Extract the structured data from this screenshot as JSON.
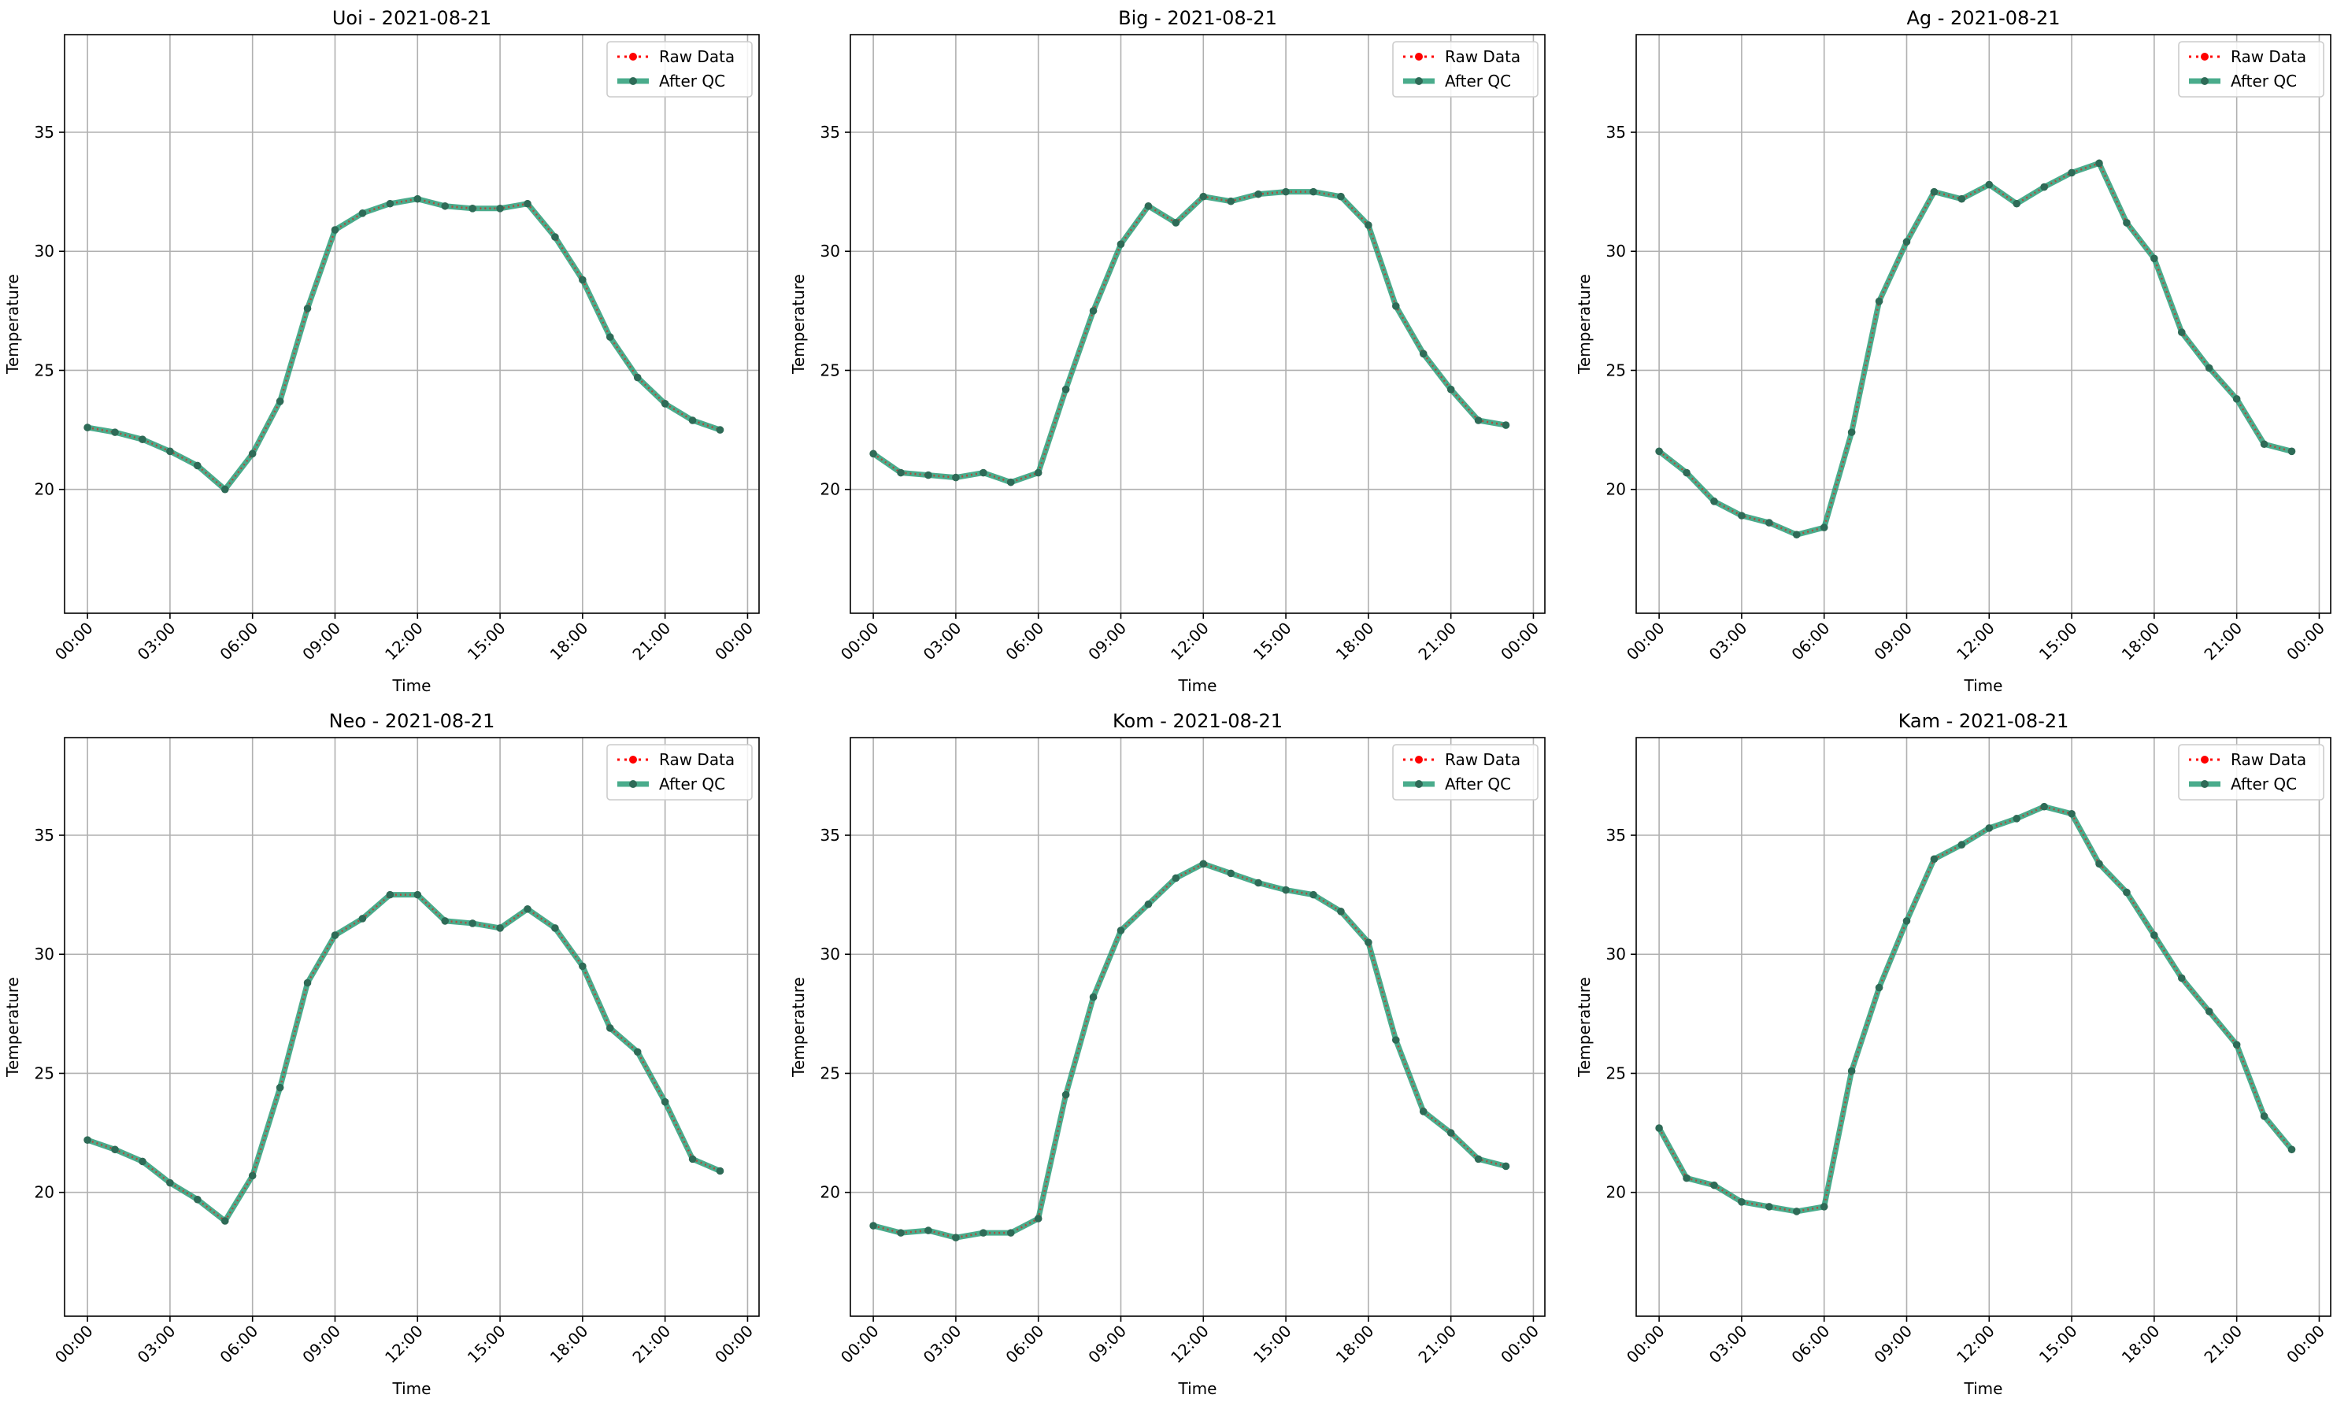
{
  "colors": {
    "raw": "#ff0000",
    "qc": "#2a9d78",
    "qc_marker": "#2e6b57",
    "grid": "#b0b0b0",
    "axes": "#000000"
  },
  "chart_data": [
    {
      "type": "line",
      "title": "Uoi - 2021-08-21",
      "xlabel": "Time",
      "ylabel": "Temperature",
      "x_ticks": [
        "00:00",
        "03:00",
        "06:00",
        "09:00",
        "12:00",
        "15:00",
        "18:00",
        "21:00",
        "00:00"
      ],
      "y_ticks": [
        "20",
        "25",
        "30",
        "35"
      ],
      "ylim": [
        14.8,
        39.1
      ],
      "x": [
        "00:00",
        "01:00",
        "02:00",
        "03:00",
        "04:00",
        "05:00",
        "06:00",
        "07:00",
        "08:00",
        "09:00",
        "10:00",
        "11:00",
        "12:00",
        "13:00",
        "14:00",
        "15:00",
        "16:00",
        "17:00",
        "18:00",
        "19:00",
        "20:00",
        "21:00",
        "22:00",
        "23:00"
      ],
      "grid": true,
      "legend": "upper right",
      "series": [
        {
          "name": "Raw Data",
          "style": "dotted-marker",
          "values": [
            22.6,
            22.4,
            22.1,
            21.6,
            21.0,
            20.0,
            21.5,
            23.7,
            27.6,
            30.9,
            31.6,
            32.0,
            32.2,
            31.9,
            31.8,
            31.8,
            32.0,
            30.6,
            28.8,
            26.4,
            24.7,
            23.6,
            22.9,
            22.5
          ]
        },
        {
          "name": "After QC",
          "style": "solid-marker",
          "values": [
            22.6,
            22.4,
            22.1,
            21.6,
            21.0,
            20.0,
            21.5,
            23.7,
            27.6,
            30.9,
            31.6,
            32.0,
            32.2,
            31.9,
            31.8,
            31.8,
            32.0,
            30.6,
            28.8,
            26.4,
            24.7,
            23.6,
            22.9,
            22.5
          ]
        }
      ]
    },
    {
      "type": "line",
      "title": "Big - 2021-08-21",
      "xlabel": "Time",
      "ylabel": "Temperature",
      "x_ticks": [
        "00:00",
        "03:00",
        "06:00",
        "09:00",
        "12:00",
        "15:00",
        "18:00",
        "21:00",
        "00:00"
      ],
      "y_ticks": [
        "20",
        "25",
        "30",
        "35"
      ],
      "ylim": [
        14.8,
        39.1
      ],
      "x": [
        "00:00",
        "01:00",
        "02:00",
        "03:00",
        "04:00",
        "05:00",
        "06:00",
        "07:00",
        "08:00",
        "09:00",
        "10:00",
        "11:00",
        "12:00",
        "13:00",
        "14:00",
        "15:00",
        "16:00",
        "17:00",
        "18:00",
        "19:00",
        "20:00",
        "21:00",
        "22:00",
        "23:00"
      ],
      "grid": true,
      "legend": "upper right",
      "series": [
        {
          "name": "Raw Data",
          "style": "dotted-marker",
          "values": [
            21.5,
            20.7,
            20.6,
            20.5,
            20.7,
            20.3,
            20.7,
            24.2,
            27.5,
            30.3,
            31.9,
            31.2,
            32.3,
            32.1,
            32.4,
            32.5,
            32.5,
            32.3,
            31.1,
            27.7,
            25.7,
            24.2,
            22.9,
            22.7
          ]
        },
        {
          "name": "After QC",
          "style": "solid-marker",
          "values": [
            21.5,
            20.7,
            20.6,
            20.5,
            20.7,
            20.3,
            20.7,
            24.2,
            27.5,
            30.3,
            31.9,
            31.2,
            32.3,
            32.1,
            32.4,
            32.5,
            32.5,
            32.3,
            31.1,
            27.7,
            25.7,
            24.2,
            22.9,
            22.7
          ]
        }
      ]
    },
    {
      "type": "line",
      "title": "Ag - 2021-08-21",
      "xlabel": "Time",
      "ylabel": "Temperature",
      "x_ticks": [
        "00:00",
        "03:00",
        "06:00",
        "09:00",
        "12:00",
        "15:00",
        "18:00",
        "21:00",
        "00:00"
      ],
      "y_ticks": [
        "20",
        "25",
        "30",
        "35"
      ],
      "ylim": [
        14.8,
        39.1
      ],
      "x": [
        "00:00",
        "01:00",
        "02:00",
        "03:00",
        "04:00",
        "05:00",
        "06:00",
        "07:00",
        "08:00",
        "09:00",
        "10:00",
        "11:00",
        "12:00",
        "13:00",
        "14:00",
        "15:00",
        "16:00",
        "17:00",
        "18:00",
        "19:00",
        "20:00",
        "21:00",
        "22:00",
        "23:00"
      ],
      "grid": true,
      "legend": "upper right",
      "series": [
        {
          "name": "Raw Data",
          "style": "dotted-marker",
          "values": [
            21.6,
            20.7,
            19.5,
            18.9,
            18.6,
            18.1,
            18.4,
            22.4,
            27.9,
            30.4,
            32.5,
            32.2,
            32.8,
            32.0,
            32.7,
            33.3,
            33.7,
            31.2,
            29.7,
            26.6,
            25.1,
            23.8,
            21.9,
            21.6
          ]
        },
        {
          "name": "After QC",
          "style": "solid-marker",
          "values": [
            21.6,
            20.7,
            19.5,
            18.9,
            18.6,
            18.1,
            18.4,
            22.4,
            27.9,
            30.4,
            32.5,
            32.2,
            32.8,
            32.0,
            32.7,
            33.3,
            33.7,
            31.2,
            29.7,
            26.6,
            25.1,
            23.8,
            21.9,
            21.6
          ]
        }
      ]
    },
    {
      "type": "line",
      "title": "Neo - 2021-08-21",
      "xlabel": "Time",
      "ylabel": "Temperature",
      "x_ticks": [
        "00:00",
        "03:00",
        "06:00",
        "09:00",
        "12:00",
        "15:00",
        "18:00",
        "21:00",
        "00:00"
      ],
      "y_ticks": [
        "20",
        "25",
        "30",
        "35"
      ],
      "ylim": [
        14.8,
        39.1
      ],
      "x": [
        "00:00",
        "01:00",
        "02:00",
        "03:00",
        "04:00",
        "05:00",
        "06:00",
        "07:00",
        "08:00",
        "09:00",
        "10:00",
        "11:00",
        "12:00",
        "13:00",
        "14:00",
        "15:00",
        "16:00",
        "17:00",
        "18:00",
        "19:00",
        "20:00",
        "21:00",
        "22:00",
        "23:00"
      ],
      "grid": true,
      "legend": "upper right",
      "series": [
        {
          "name": "Raw Data",
          "style": "dotted-marker",
          "values": [
            22.2,
            21.8,
            21.3,
            20.4,
            19.7,
            18.8,
            20.7,
            24.4,
            28.8,
            30.8,
            31.5,
            32.5,
            32.5,
            31.4,
            31.3,
            31.1,
            31.9,
            31.1,
            29.5,
            26.9,
            25.9,
            23.8,
            21.4,
            20.9
          ]
        },
        {
          "name": "After QC",
          "style": "solid-marker",
          "values": [
            22.2,
            21.8,
            21.3,
            20.4,
            19.7,
            18.8,
            20.7,
            24.4,
            28.8,
            30.8,
            31.5,
            32.5,
            32.5,
            31.4,
            31.3,
            31.1,
            31.9,
            31.1,
            29.5,
            26.9,
            25.9,
            23.8,
            21.4,
            20.9
          ]
        }
      ]
    },
    {
      "type": "line",
      "title": "Kom - 2021-08-21",
      "xlabel": "Time",
      "ylabel": "Temperature",
      "x_ticks": [
        "00:00",
        "03:00",
        "06:00",
        "09:00",
        "12:00",
        "15:00",
        "18:00",
        "21:00",
        "00:00"
      ],
      "y_ticks": [
        "20",
        "25",
        "30",
        "35"
      ],
      "ylim": [
        14.8,
        39.1
      ],
      "x": [
        "00:00",
        "01:00",
        "02:00",
        "03:00",
        "04:00",
        "05:00",
        "06:00",
        "07:00",
        "08:00",
        "09:00",
        "10:00",
        "11:00",
        "12:00",
        "13:00",
        "14:00",
        "15:00",
        "16:00",
        "17:00",
        "18:00",
        "19:00",
        "20:00",
        "21:00",
        "22:00",
        "23:00"
      ],
      "grid": true,
      "legend": "upper right",
      "series": [
        {
          "name": "Raw Data",
          "style": "dotted-marker",
          "values": [
            18.6,
            18.3,
            18.4,
            18.1,
            18.3,
            18.3,
            18.9,
            24.1,
            28.2,
            31.0,
            32.1,
            33.2,
            33.8,
            33.4,
            33.0,
            32.7,
            32.5,
            31.8,
            30.5,
            26.4,
            23.4,
            22.5,
            21.4,
            21.1
          ]
        },
        {
          "name": "After QC",
          "style": "solid-marker",
          "values": [
            18.6,
            18.3,
            18.4,
            18.1,
            18.3,
            18.3,
            18.9,
            24.1,
            28.2,
            31.0,
            32.1,
            33.2,
            33.8,
            33.4,
            33.0,
            32.7,
            32.5,
            31.8,
            30.5,
            26.4,
            23.4,
            22.5,
            21.4,
            21.1
          ]
        }
      ]
    },
    {
      "type": "line",
      "title": "Kam - 2021-08-21",
      "xlabel": "Time",
      "ylabel": "Temperature",
      "x_ticks": [
        "00:00",
        "03:00",
        "06:00",
        "09:00",
        "12:00",
        "15:00",
        "18:00",
        "21:00",
        "00:00"
      ],
      "y_ticks": [
        "20",
        "25",
        "30",
        "35"
      ],
      "ylim": [
        14.8,
        39.1
      ],
      "x": [
        "00:00",
        "01:00",
        "02:00",
        "03:00",
        "04:00",
        "05:00",
        "06:00",
        "07:00",
        "08:00",
        "09:00",
        "10:00",
        "11:00",
        "12:00",
        "13:00",
        "14:00",
        "15:00",
        "16:00",
        "17:00",
        "18:00",
        "19:00",
        "20:00",
        "21:00",
        "22:00",
        "23:00"
      ],
      "grid": true,
      "legend": "upper right",
      "series": [
        {
          "name": "Raw Data",
          "style": "dotted-marker",
          "values": [
            22.7,
            20.6,
            20.3,
            19.6,
            19.4,
            19.2,
            19.4,
            25.1,
            28.6,
            31.4,
            34.0,
            34.6,
            35.3,
            35.7,
            36.2,
            35.9,
            33.8,
            32.6,
            30.8,
            29.0,
            27.6,
            26.2,
            23.2,
            21.8
          ]
        },
        {
          "name": "After QC",
          "style": "solid-marker",
          "values": [
            22.7,
            20.6,
            20.3,
            19.6,
            19.4,
            19.2,
            19.4,
            25.1,
            28.6,
            31.4,
            34.0,
            34.6,
            35.3,
            35.7,
            36.2,
            35.9,
            33.8,
            32.6,
            30.8,
            29.0,
            27.6,
            26.2,
            23.2,
            21.8
          ]
        }
      ]
    }
  ]
}
